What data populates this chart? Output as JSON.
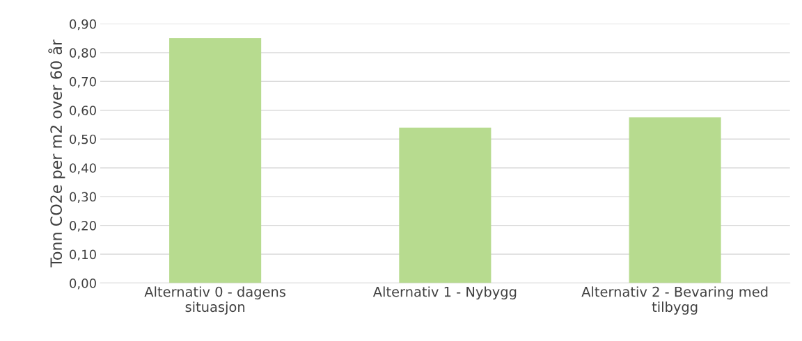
{
  "chart_data": {
    "type": "bar",
    "ylabel": "Tonn CO2e per m2 over 60 år",
    "categories": [
      "Alternativ 0 - dagens\nsituasjon",
      "Alternativ 1 - Nybygg",
      "Alternativ 2 - Bevaring med\ntilbygg"
    ],
    "values": [
      0.85,
      0.54,
      0.575
    ],
    "color": "#b7db8f",
    "ylim": [
      0,
      0.9
    ],
    "yticks": [
      {
        "value": 0,
        "label": "0,00"
      },
      {
        "value": 0.1,
        "label": "0,10"
      },
      {
        "value": 0.2,
        "label": "0,20"
      },
      {
        "value": 0.3,
        "label": "0,30"
      },
      {
        "value": 0.4,
        "label": "0,40"
      },
      {
        "value": 0.5,
        "label": "0,50"
      },
      {
        "value": 0.6,
        "label": "0,60"
      },
      {
        "value": 0.7,
        "label": "0,70"
      },
      {
        "value": 0.8,
        "label": "0,80"
      },
      {
        "value": 0.9,
        "label": "0,90"
      }
    ],
    "grid": "y"
  }
}
